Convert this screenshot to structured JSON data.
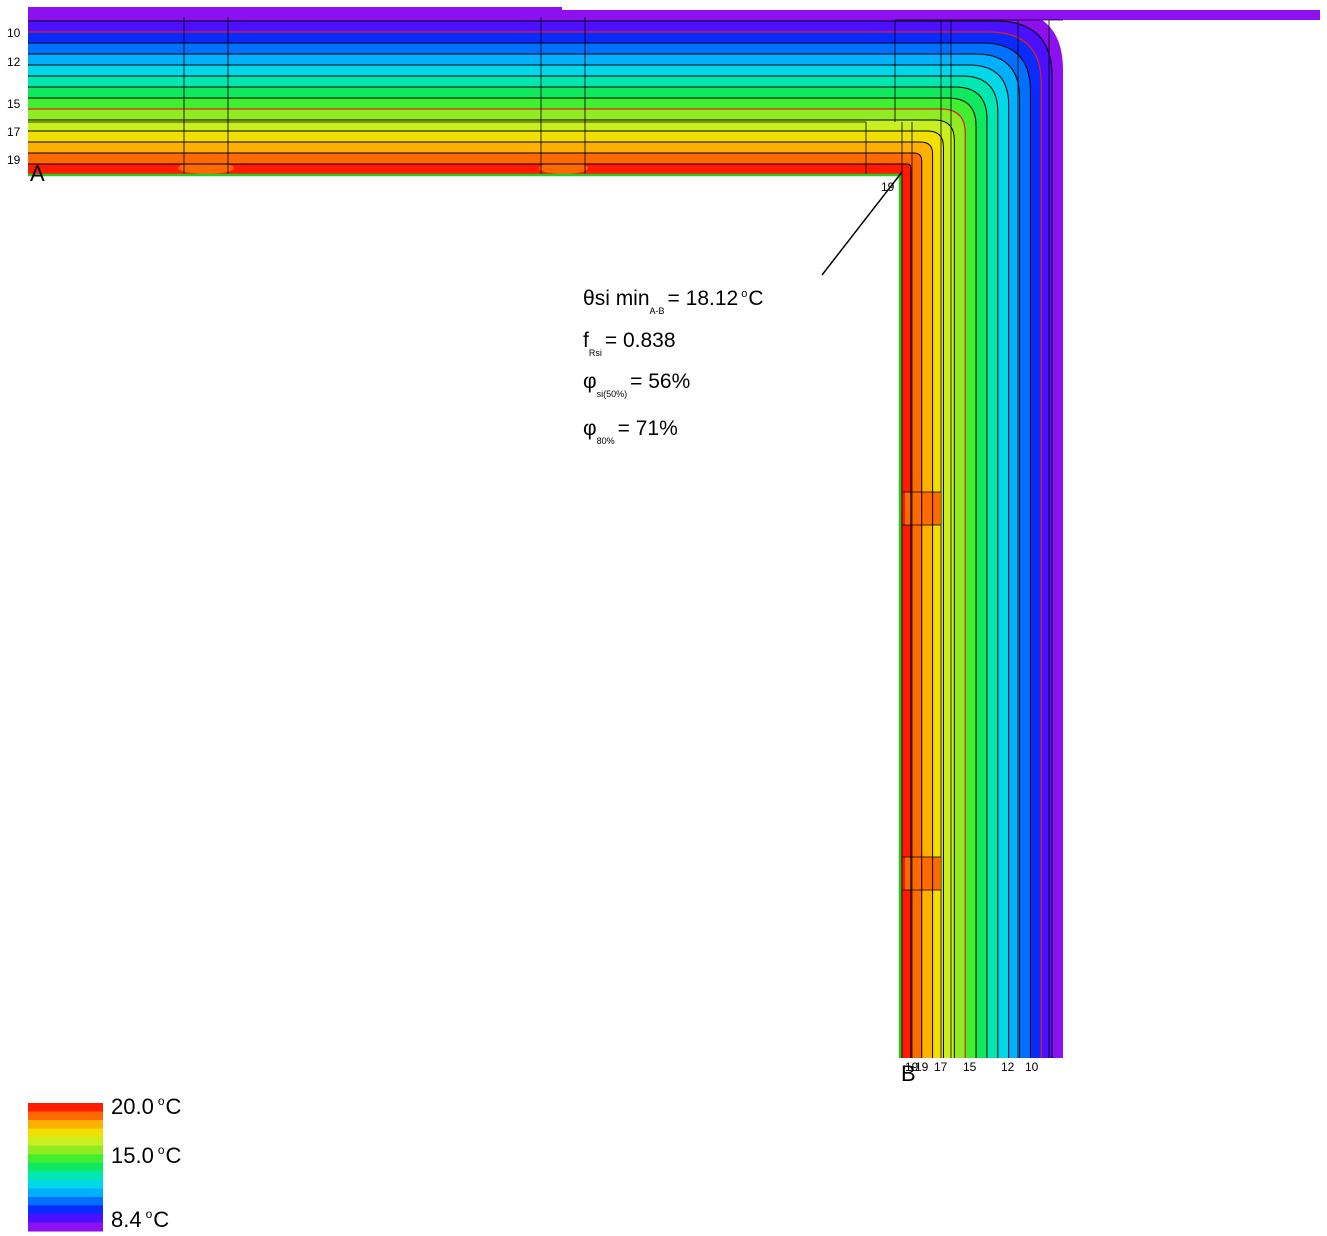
{
  "diagram": {
    "type": "thermal bridge isotherm plot",
    "color_bands": [
      "#8c10f0",
      "#4b10ff",
      "#0a2aff",
      "#0070ff",
      "#00b0ff",
      "#00d8e8",
      "#00e8b0",
      "#10e860",
      "#40f030",
      "#90ec20",
      "#c8f020",
      "#f0e000",
      "#ffb000",
      "#ff6a00",
      "#ff1a00"
    ],
    "isotherm_color": "#000000",
    "highlight_isotherm_color": "#e02020",
    "surface_line_color": "#22cc22"
  },
  "results": {
    "theta_symbol": "θ",
    "theta_label": "si min",
    "theta_subscript": "A-B",
    "theta_value": "= 18.12",
    "theta_unit_deg": "o",
    "theta_unit": "C",
    "frsi_label": "f",
    "frsi_subscript": "Rsi",
    "frsi_value": "= 0.838",
    "phi_symbol": "φ",
    "phi50_subscript": "si(50%)",
    "phi50_value": "= 56%",
    "phi80_subscript": "80%",
    "phi80_value": "= 71%"
  },
  "points": {
    "a": "A",
    "b": "B"
  },
  "isotherm_labels_left": [
    "10",
    "12",
    "15",
    "17",
    "19"
  ],
  "isotherm_label_corner": "19",
  "isotherm_labels_bottom": [
    "19",
    "19",
    "17",
    "15",
    "12",
    "10"
  ],
  "legend": {
    "max": "20.0",
    "mid": "15.0",
    "min": "8.4",
    "deg": "o",
    "unit": "C",
    "colors": [
      "#ff1a00",
      "#ff6a00",
      "#ffb000",
      "#f0e000",
      "#c8f020",
      "#90ec20",
      "#40f030",
      "#10e860",
      "#00e8b0",
      "#00d8e8",
      "#00b0ff",
      "#0070ff",
      "#0a2aff",
      "#4b10ff",
      "#8c10f0"
    ]
  }
}
